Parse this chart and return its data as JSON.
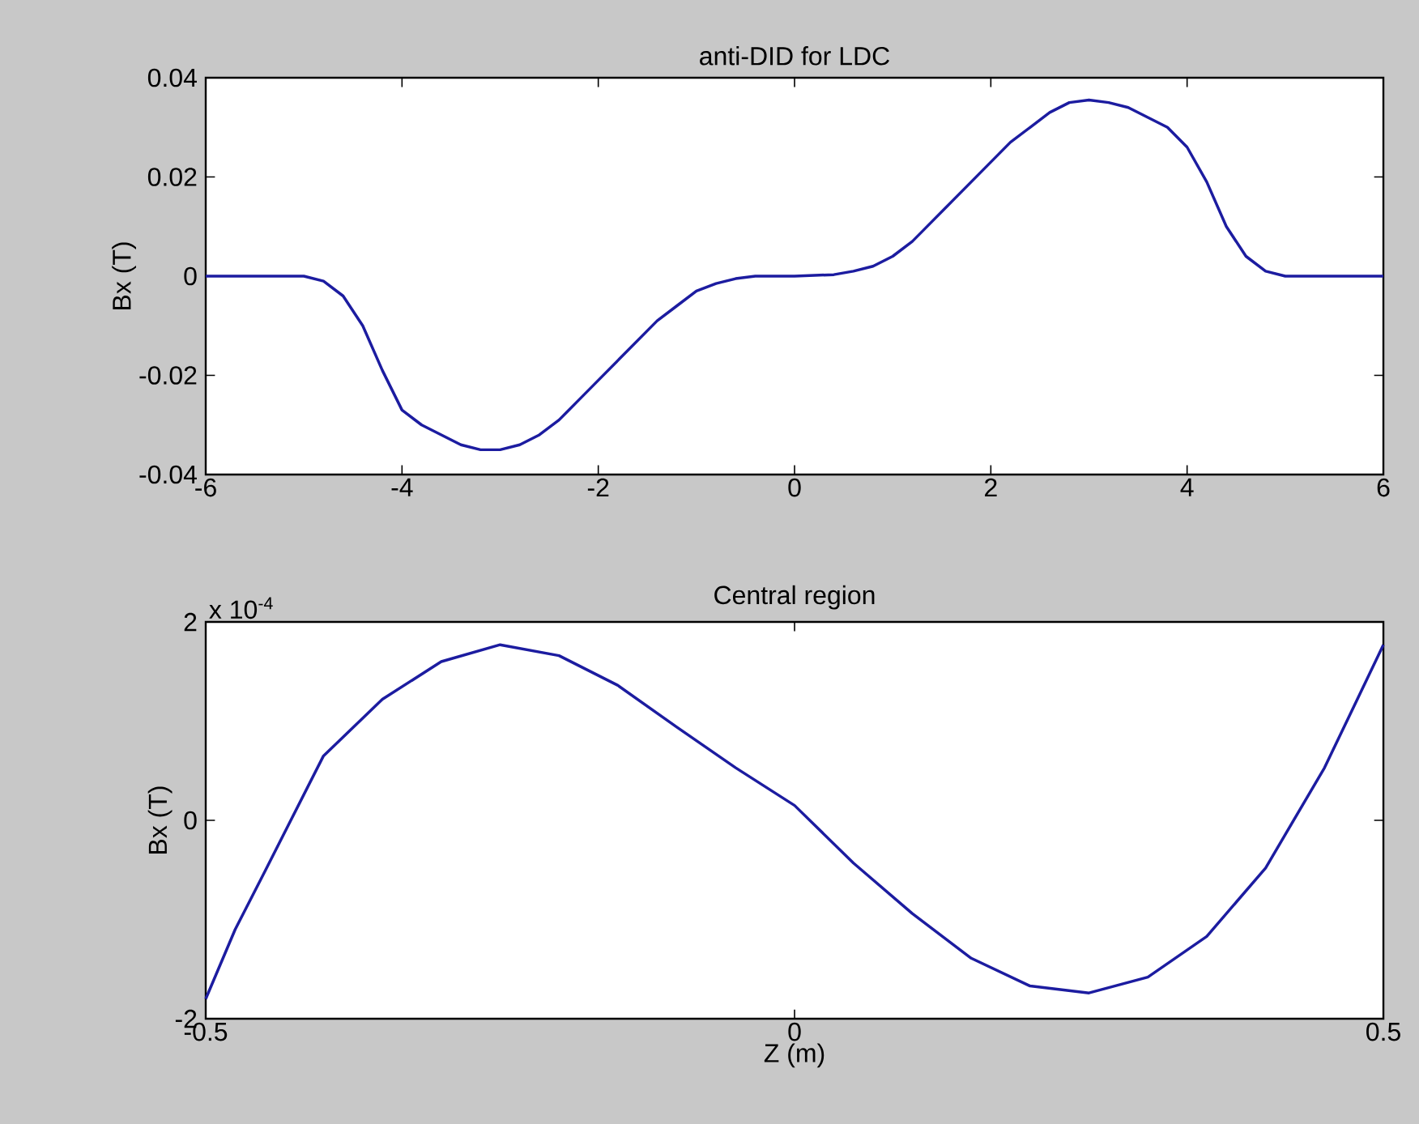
{
  "chart_data": [
    {
      "type": "line",
      "title": "anti-DID for LDC",
      "ylabel": "Bx (T)",
      "color": "#1c1ca0",
      "x": [
        -6,
        -5.5,
        -5.0,
        -4.8,
        -4.6,
        -4.4,
        -4.2,
        -4.0,
        -3.8,
        -3.6,
        -3.4,
        -3.2,
        -3.0,
        -2.8,
        -2.6,
        -2.4,
        -2.2,
        -2.0,
        -1.8,
        -1.6,
        -1.4,
        -1.2,
        -1.0,
        -0.8,
        -0.6,
        -0.4,
        0,
        0.4,
        0.6,
        0.8,
        1.0,
        1.2,
        1.4,
        1.6,
        1.8,
        2.0,
        2.2,
        2.4,
        2.6,
        2.8,
        3.0,
        3.2,
        3.4,
        3.6,
        3.8,
        4.0,
        4.2,
        4.4,
        4.6,
        4.8,
        5.0,
        5.5,
        6
      ],
      "values": [
        0,
        0,
        0,
        -0.001,
        -0.004,
        -0.01,
        -0.019,
        -0.027,
        -0.03,
        -0.032,
        -0.034,
        -0.035,
        -0.035,
        -0.034,
        -0.032,
        -0.029,
        -0.025,
        -0.021,
        -0.017,
        -0.013,
        -0.009,
        -0.006,
        -0.003,
        -0.0015,
        -0.0005,
        0,
        0,
        0.0003,
        0.001,
        0.002,
        0.004,
        0.007,
        0.011,
        0.015,
        0.019,
        0.023,
        0.027,
        0.03,
        0.033,
        0.035,
        0.0355,
        0.035,
        0.034,
        0.032,
        0.03,
        0.026,
        0.019,
        0.01,
        0.004,
        0.001,
        0,
        0,
        0
      ],
      "xlim": [
        -6,
        6
      ],
      "ylim": [
        -0.04,
        0.04
      ],
      "xticks": [
        -6,
        -4,
        -2,
        0,
        2,
        4,
        6
      ],
      "yticks": [
        -0.04,
        -0.02,
        0,
        0.02,
        0.04
      ]
    },
    {
      "type": "line",
      "title": "Central region",
      "xlabel": "Z (m)",
      "ylabel": "Bx (T)",
      "color": "#1c1ca0",
      "annotations": [
        "x 10$^{-4}$"
      ],
      "x": [
        -0.5,
        -0.475,
        -0.45,
        -0.4,
        -0.35,
        -0.3,
        -0.25,
        -0.2,
        -0.15,
        -0.1,
        -0.05,
        0,
        0.05,
        0.1,
        0.15,
        0.2,
        0.25,
        0.3,
        0.35,
        0.4,
        0.45,
        0.475,
        0.5
      ],
      "values": [
        -1.8,
        -1.1,
        -0.52,
        0.65,
        1.22,
        1.6,
        1.77,
        1.66,
        1.36,
        0.94,
        0.53,
        0.15,
        -0.43,
        -0.94,
        -1.39,
        -1.67,
        -1.74,
        -1.58,
        -1.17,
        -0.48,
        0.53,
        1.15,
        1.77
      ],
      "xlim": [
        -0.5,
        0.5
      ],
      "ylim": [
        -2,
        2
      ],
      "xticks": [
        -0.5,
        0,
        0.5
      ],
      "yticks": [
        -2,
        0,
        2
      ]
    }
  ]
}
